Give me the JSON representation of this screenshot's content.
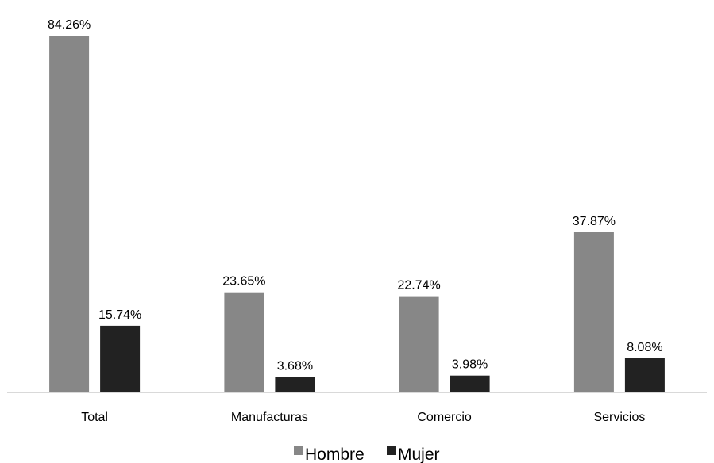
{
  "chart_data": {
    "type": "bar",
    "categories": [
      "Total",
      "Manufacturas",
      "Comercio",
      "Servicios"
    ],
    "series": [
      {
        "name": "Hombre",
        "values": [
          84.26,
          23.65,
          22.74,
          37.87
        ],
        "labels": [
          "84.26%",
          "23.65%",
          "22.74%",
          "37.87%"
        ],
        "color": "#878787"
      },
      {
        "name": "Mujer",
        "values": [
          15.74,
          3.68,
          3.98,
          8.08
        ],
        "labels": [
          "15.74%",
          "3.68%",
          "3.98%",
          "8.08%"
        ],
        "color": "#222222"
      }
    ],
    "ylim": [
      0,
      84.26
    ],
    "y_unit": "%",
    "grid": false,
    "legend_position": "bottom-center",
    "title": "",
    "xlabel": "",
    "ylabel": ""
  }
}
